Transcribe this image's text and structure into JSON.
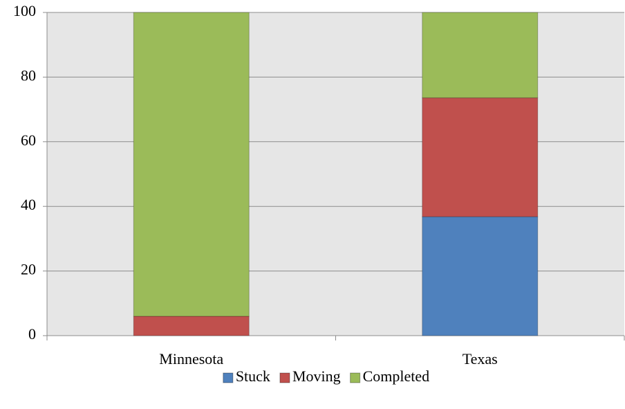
{
  "chart_data": {
    "type": "stacked_bar",
    "categories": [
      "Minnesota",
      "Texas"
    ],
    "series": [
      {
        "name": "Stuck",
        "color": "#4f81bd",
        "values": [
          0,
          36.8
        ]
      },
      {
        "name": "Moving",
        "color": "#c0504d",
        "values": [
          6,
          36.8
        ]
      },
      {
        "name": "Completed",
        "color": "#9bbb59",
        "values": [
          94,
          26.4
        ]
      }
    ],
    "ylim": [
      0,
      100
    ],
    "yticks": [
      0,
      20,
      40,
      60,
      80,
      100
    ],
    "grid": true,
    "legend": "bottom"
  }
}
